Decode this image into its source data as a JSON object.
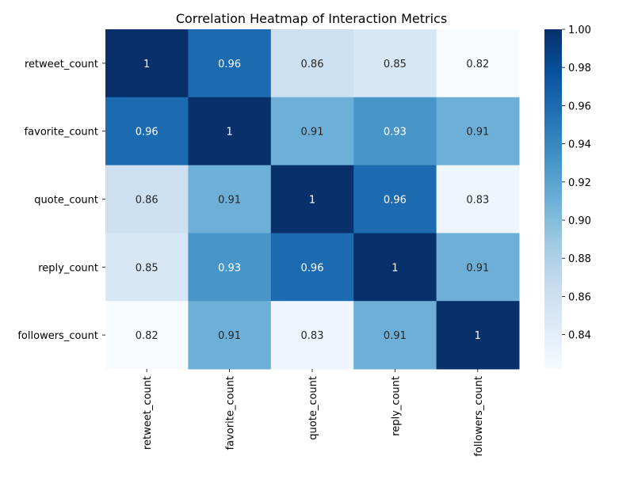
{
  "chart_data": {
    "type": "heatmap",
    "title": "Correlation Heatmap of Interaction Metrics",
    "row_labels": [
      "retweet_count",
      "favorite_count",
      "quote_count",
      "reply_count",
      "followers_count"
    ],
    "col_labels": [
      "retweet_count",
      "favorite_count",
      "quote_count",
      "reply_count",
      "followers_count"
    ],
    "values": [
      [
        1.0,
        0.96,
        0.86,
        0.85,
        0.82
      ],
      [
        0.96,
        1.0,
        0.91,
        0.93,
        0.91
      ],
      [
        0.86,
        0.91,
        1.0,
        0.96,
        0.83
      ],
      [
        0.85,
        0.93,
        0.96,
        1.0,
        0.91
      ],
      [
        0.82,
        0.91,
        0.83,
        0.91,
        1.0
      ]
    ],
    "annotations": [
      [
        "1",
        "0.96",
        "0.86",
        "0.85",
        "0.82"
      ],
      [
        "0.96",
        "1",
        "0.91",
        "0.93",
        "0.91"
      ],
      [
        "0.86",
        "0.91",
        "1",
        "0.96",
        "0.83"
      ],
      [
        "0.85",
        "0.93",
        "0.96",
        "1",
        "0.91"
      ],
      [
        "0.82",
        "0.91",
        "0.83",
        "0.91",
        "1"
      ]
    ],
    "colormap": "Blues",
    "color_range": [
      0.822,
      1.0
    ],
    "colorbar_ticks": [
      "0.84",
      "0.86",
      "0.88",
      "0.90",
      "0.92",
      "0.94",
      "0.96",
      "0.98",
      "1.00"
    ],
    "colorbar_tick_values": [
      0.84,
      0.86,
      0.88,
      0.9,
      0.92,
      0.94,
      0.96,
      0.98,
      1.0
    ],
    "colorbar_stops": [
      "#f7fbff",
      "#deebf7",
      "#c6dbef",
      "#9ecae1",
      "#6baed6",
      "#4292c6",
      "#2171b5",
      "#08519c",
      "#08306b"
    ],
    "text_color_light": "#ffffff",
    "text_color_dark": "#262626"
  }
}
